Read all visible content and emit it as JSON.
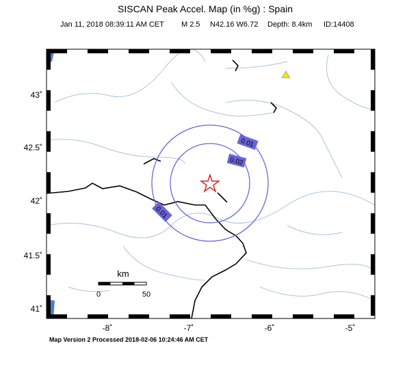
{
  "header": {
    "title": "SISCAN Peak Accel. Map (in %g) : Spain",
    "subtitle": [
      "Jan 11, 2018 08:39:11 AM CET",
      "M 2.5",
      "N42.16 W6.72",
      "Depth: 8.4km",
      "ID:14408"
    ]
  },
  "axes": {
    "lat_labels": [
      "43˚",
      "42.5˚",
      "42˚",
      "41.5˚",
      "41˚"
    ],
    "lon_labels": [
      "-8˚",
      "-7˚",
      "-6˚",
      "-5˚"
    ]
  },
  "contours": [
    "0.01",
    "0.02",
    "0.01"
  ],
  "scale": {
    "unit": "km",
    "start": "0",
    "end": "50"
  },
  "footer": "Map Version 2 Processed 2018-02-06 10:24:46 AM CET"
}
